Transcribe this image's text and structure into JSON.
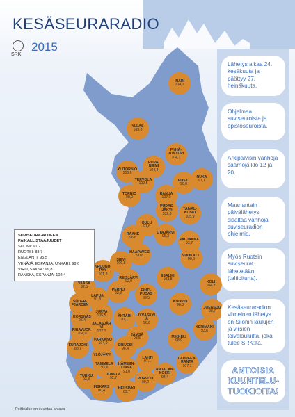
{
  "header": {
    "title": "KESÄSEURARADIO",
    "year": "2015",
    "org": "SRK"
  },
  "stations": [
    {
      "name": "INARI",
      "freq": "104,1"
    },
    {
      "name": "YLLÄS",
      "freq": "103,0"
    },
    {
      "name": "PYHÄ-TUNTURI",
      "freq": "104,7"
    },
    {
      "name": "ROVA-NIEMI",
      "freq": "104,4"
    },
    {
      "name": "YLITORNIO",
      "freq": "106,6"
    },
    {
      "name": "TERVOLA",
      "freq": "102,5"
    },
    {
      "name": "POSIO",
      "freq": "90,0"
    },
    {
      "name": "RUKA",
      "freq": "97,1"
    },
    {
      "name": "TORNIO",
      "freq": "90,0"
    },
    {
      "name": "RANUA",
      "freq": "107,0"
    },
    {
      "name": "PUDAS-JÄRVI",
      "freq": "102,8"
    },
    {
      "name": "TAIVAL-KOSKI",
      "freq": "105,9"
    },
    {
      "name": "OULU",
      "freq": "91,6"
    },
    {
      "name": "RAAHE",
      "freq": "96,6"
    },
    {
      "name": "UTAJÄRVI",
      "freq": "95,3"
    },
    {
      "name": "PALJAKKA",
      "freq": "93,7"
    },
    {
      "name": "HAAPAVESI",
      "freq": "90,8"
    },
    {
      "name": "SIEVI",
      "freq": "106,8"
    },
    {
      "name": "VUOKATTI",
      "freq": "90,0"
    },
    {
      "name": "KRUUNU-PYY",
      "freq": "101,3"
    },
    {
      "name": "REISJÄRVI",
      "freq": "92,0"
    },
    {
      "name": "IISALMI",
      "freq": "103,8"
    },
    {
      "name": "KOLI",
      "freq": "104,8"
    },
    {
      "name": "VAASA",
      "freq": "92,5"
    },
    {
      "name": "LAPUA",
      "freq": "91,8"
    },
    {
      "name": "PERHO",
      "freq": "92,3"
    },
    {
      "name": "PIHTI-PUDAS",
      "freq": "89,5"
    },
    {
      "name": "SÖDER-FJÄRDEN"
    },
    {
      "name": "KUOPIO",
      "freq": "96,3"
    },
    {
      "name": "JOENSUU",
      "freq": "98,7"
    },
    {
      "name": "KORSNÄS",
      "freq": "96,4"
    },
    {
      "name": "JURVA",
      "freq": "105,5"
    },
    {
      "name": "ÄHTÄRI",
      "freq": "97,1"
    },
    {
      "name": "JYVÄSKYLÄ",
      "freq": "96,8"
    },
    {
      "name": "KERIMÄKI",
      "freq": "93,6"
    },
    {
      "name": "PIHAVUORI",
      "freq": "104,0"
    },
    {
      "name": "JALASJÄRVI",
      "freq": "107,1"
    },
    {
      "name": "JÄMSÄ",
      "freq": "98,5"
    },
    {
      "name": "MIKKELI",
      "freq": "98,9"
    },
    {
      "name": "PARKANO",
      "freq": "104,0"
    },
    {
      "name": "EURAJOKI",
      "freq": "88,7"
    },
    {
      "name": "ORIVESI",
      "freq": "96,4"
    },
    {
      "name": "YLÖJÄRVI",
      "freq": "101,6"
    },
    {
      "name": "LAHTI",
      "freq": "97,1"
    },
    {
      "name": "LAPPEEN-RANTA",
      "freq": "107,1"
    },
    {
      "name": "TAMMELA",
      "freq": "93,4"
    },
    {
      "name": "HÄMEEN-LINNA",
      "freq": "91,0"
    },
    {
      "name": "ANJALAN-KOSKI",
      "freq": "94,4"
    },
    {
      "name": "TURKU",
      "freq": "93,8"
    },
    {
      "name": "JOKELA",
      "freq": "92,7"
    },
    {
      "name": "PORVOO",
      "freq": "89,2"
    },
    {
      "name": "FISKARS",
      "freq": "90,4"
    },
    {
      "name": "HELSINKI",
      "freq": "89,7"
    }
  ],
  "info": [
    "Lähetys alkaa 24. kesäkuuta ja päättyy 27. heinäkuuta.",
    "Ohjelmaa suviseuroista ja opistoseuroista.",
    "Arkipäivisin vanhoja saarnoja klo 12 ja 20.",
    "Maanantain päivälähetys sisältää vanhoja suviseuradion ohjelmia.",
    "Myös Ruotsin suviseurat lähetetään (taltioituna).",
    "Kesäseuraradion viimeinen lähetys on Siionin laulujen ja virsien toivelauluilta, joka tulee SRK:lta.",
    "ANTOISIA KUUNTELU-TUOKIOITA!"
  ],
  "inset": {
    "title": "SUVISEURA-ALUEEN PAIKALLISTAAJUUDET",
    "lines": [
      "SUOMI: 91,2",
      "RUOTSI: 88,7",
      "ENGLANTI: 95,5",
      "VENÄJÄ, ESPANJA, UNKARI: 98,0",
      "VIRO, SAKSA: 99,8",
      "RANSKA, ESPANJA: 102,4"
    ]
  },
  "footnote": "Peittoalue on suuntaa antava"
}
